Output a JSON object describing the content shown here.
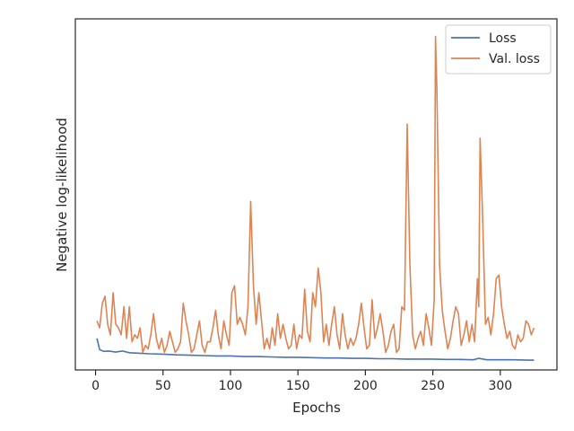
{
  "chart_data": {
    "type": "line",
    "title": "",
    "xlabel": "Epochs",
    "ylabel": "Negative log-likelihood",
    "xlim": [
      -15,
      342
    ],
    "ylim": [
      0,
      100
    ],
    "y_tick_labels_shown": false,
    "x_ticks": [
      0,
      50,
      100,
      150,
      200,
      250,
      300
    ],
    "x_tick_labels": [
      "0",
      "50",
      "100",
      "150",
      "200",
      "250",
      "300"
    ],
    "grid": false,
    "legend_position": "top-right",
    "series": [
      {
        "name": "Loss",
        "color": "#4c72b0",
        "x": [
          1,
          3,
          6,
          10,
          15,
          20,
          25,
          30,
          40,
          50,
          60,
          70,
          80,
          90,
          100,
          110,
          120,
          130,
          140,
          150,
          160,
          170,
          180,
          190,
          200,
          210,
          220,
          230,
          240,
          250,
          260,
          270,
          280,
          284,
          290,
          300,
          310,
          320,
          325
        ],
        "y": [
          9.0,
          5.8,
          5.3,
          5.4,
          5.1,
          5.4,
          4.9,
          4.8,
          4.6,
          4.5,
          4.3,
          4.2,
          4.1,
          4.0,
          4.0,
          3.8,
          3.8,
          3.7,
          3.6,
          3.6,
          3.5,
          3.4,
          3.4,
          3.3,
          3.3,
          3.2,
          3.2,
          3.1,
          3.1,
          3.1,
          3.0,
          3.0,
          2.9,
          3.3,
          2.9,
          2.9,
          2.9,
          2.8,
          2.8
        ]
      },
      {
        "name": "Val. loss",
        "color": "#dd8452",
        "x": [
          1,
          3,
          5,
          7,
          9,
          11,
          13,
          15,
          17,
          19,
          21,
          23,
          25,
          27,
          29,
          31,
          33,
          35,
          37,
          39,
          41,
          43,
          45,
          47,
          49,
          51,
          53,
          55,
          57,
          59,
          61,
          63,
          65,
          67,
          69,
          71,
          73,
          75,
          77,
          79,
          81,
          83,
          85,
          87,
          89,
          91,
          93,
          95,
          97,
          99,
          101,
          103,
          105,
          107,
          109,
          111,
          113,
          115,
          117,
          119,
          121,
          123,
          125,
          127,
          129,
          131,
          133,
          135,
          137,
          139,
          141,
          143,
          145,
          147,
          149,
          151,
          153,
          155,
          157,
          159,
          161,
          163,
          165,
          167,
          169,
          171,
          173,
          175,
          177,
          179,
          181,
          183,
          185,
          187,
          189,
          191,
          193,
          195,
          197,
          199,
          201,
          203,
          205,
          207,
          209,
          211,
          213,
          215,
          217,
          219,
          221,
          223,
          225,
          227,
          229,
          231,
          233,
          235,
          237,
          239,
          241,
          243,
          245,
          247,
          249,
          251,
          252,
          253,
          255,
          257,
          259,
          261,
          263,
          265,
          267,
          269,
          271,
          273,
          275,
          277,
          279,
          281,
          283,
          284,
          285,
          287,
          289,
          291,
          293,
          295,
          297,
          299,
          301,
          303,
          305,
          307,
          309,
          311,
          313,
          315,
          317,
          319,
          321,
          323,
          325
        ],
        "y": [
          14,
          12,
          19,
          21,
          13,
          10,
          22,
          13,
          12,
          10,
          18,
          9,
          18,
          8,
          10,
          9,
          12,
          5,
          7,
          6,
          10,
          16,
          9,
          6,
          9,
          5,
          7,
          11,
          8,
          5,
          6,
          8,
          19,
          14,
          10,
          5,
          6,
          10,
          14,
          7,
          5,
          8,
          8,
          12,
          17,
          10,
          6,
          14,
          10,
          7,
          22,
          24,
          13,
          15,
          13,
          10,
          18,
          48,
          24,
          13,
          22,
          14,
          6,
          9,
          6,
          12,
          7,
          16,
          9,
          13,
          9,
          6,
          7,
          13,
          6,
          10,
          9,
          23,
          11,
          8,
          22,
          18,
          29,
          22,
          8,
          13,
          7,
          13,
          18,
          10,
          6,
          16,
          10,
          6,
          9,
          7,
          9,
          13,
          19,
          12,
          6,
          7,
          20,
          9,
          12,
          16,
          11,
          5,
          7,
          11,
          13,
          5,
          6,
          18,
          17,
          70,
          30,
          10,
          6,
          9,
          11,
          7,
          16,
          12,
          7,
          20,
          95,
          80,
          30,
          17,
          11,
          6,
          9,
          14,
          18,
          16,
          7,
          10,
          14,
          8,
          13,
          8,
          26,
          18,
          66,
          42,
          13,
          15,
          10,
          16,
          26,
          27,
          18,
          13,
          9,
          11,
          7,
          6,
          10,
          8,
          9,
          14,
          13,
          10,
          12
        ]
      }
    ]
  }
}
